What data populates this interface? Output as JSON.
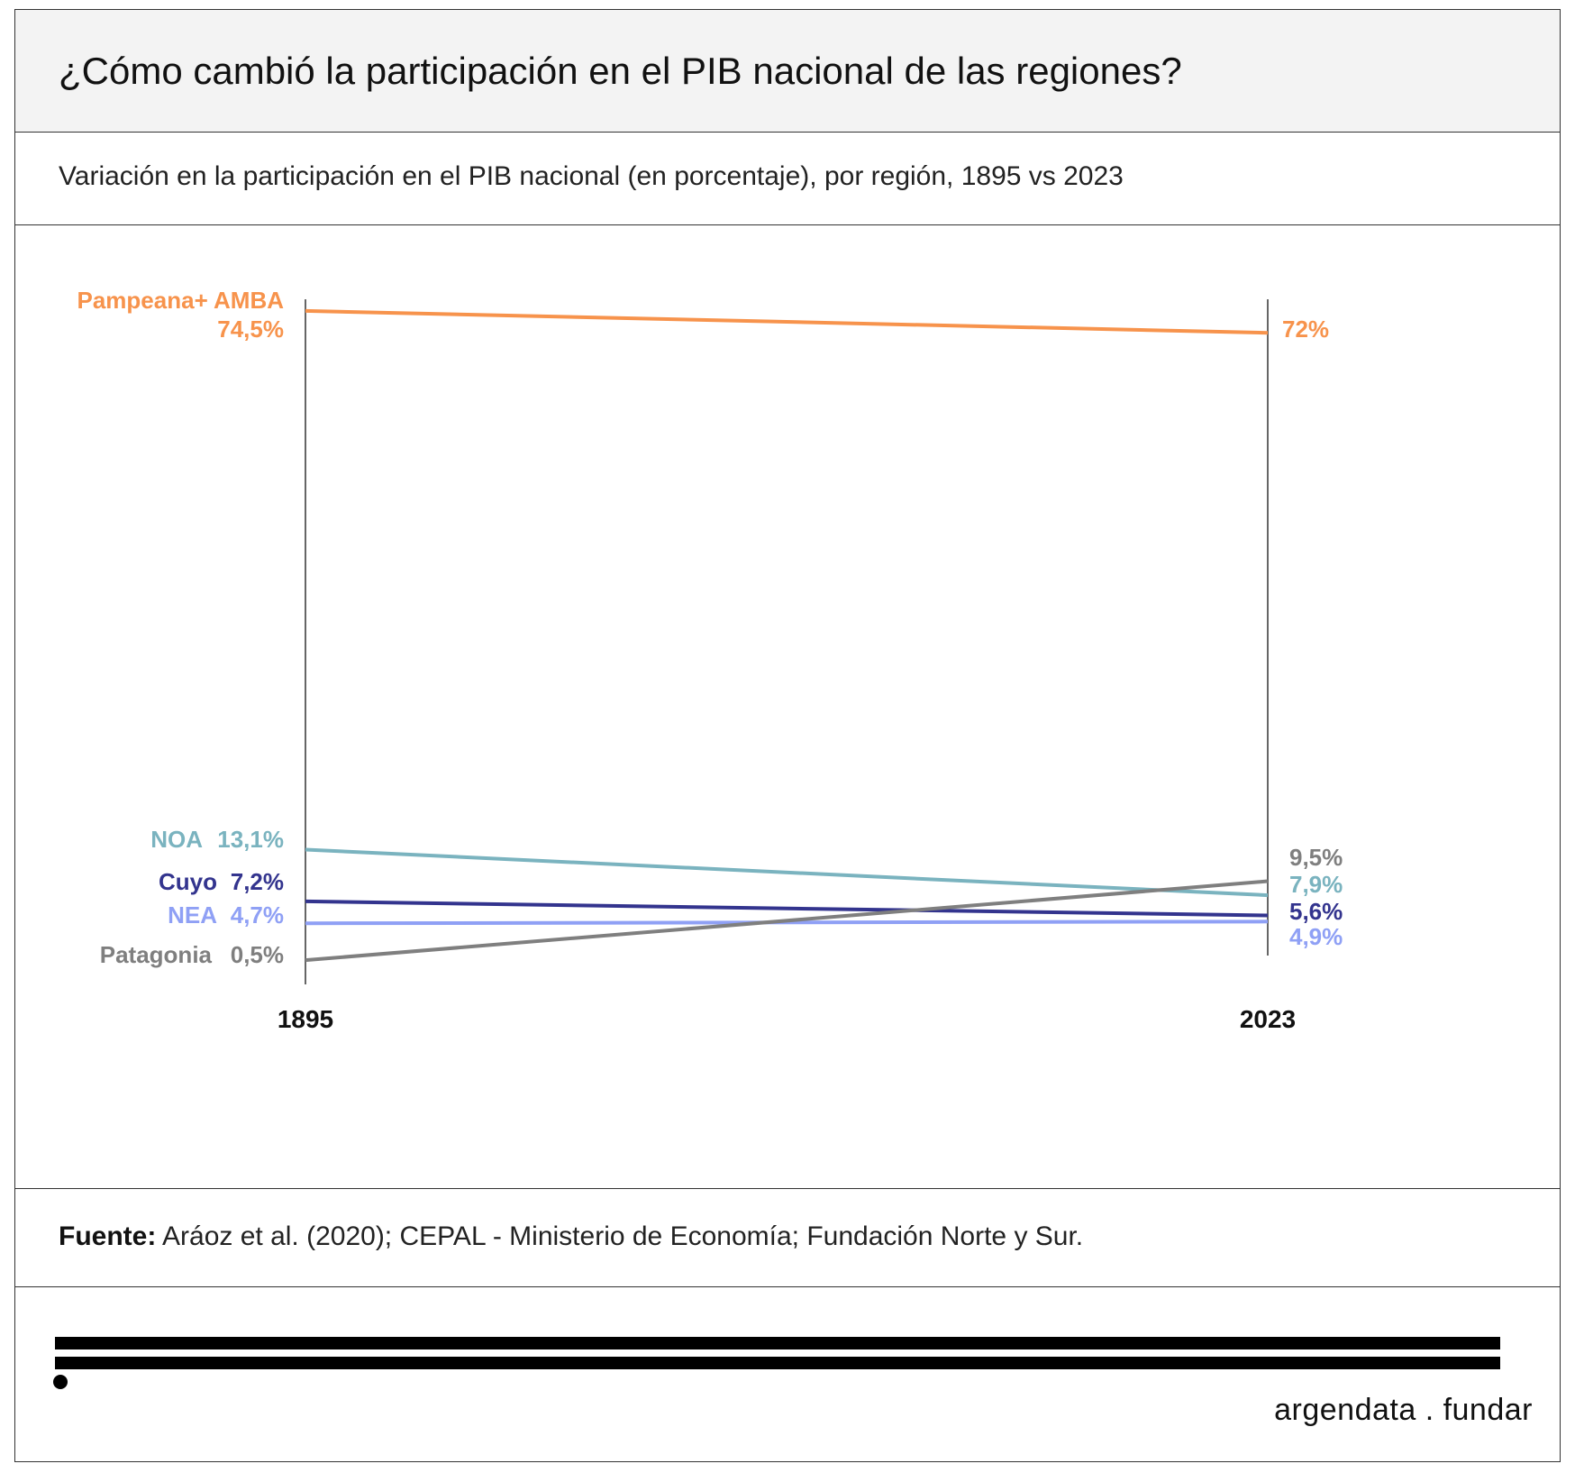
{
  "header": {
    "title": "¿Cómo cambió la participación en el PIB nacional de las regiones?",
    "subtitle": "Variación en la participación en el PIB nacional (en porcentaje), por región, 1895 vs 2023"
  },
  "footer": {
    "source_label": "Fuente:",
    "source_text": " Aráoz et al. (2020); CEPAL - Ministerio de Economía; Fundación Norte y Sur.",
    "brand": "argendata . fundar"
  },
  "chart_data": {
    "type": "line",
    "title": "",
    "xlabel": "",
    "ylabel": "",
    "x": [
      "1895",
      "2023"
    ],
    "ylim": [
      0,
      75
    ],
    "grid": false,
    "legend": "direct labels at line ends",
    "series": [
      {
        "name": "Pampeana+ AMBA",
        "values": [
          74.5,
          72
        ],
        "labels": [
          "74,5%",
          "72%"
        ],
        "color": "#f7934c"
      },
      {
        "name": "NOA",
        "values": [
          13.1,
          7.9
        ],
        "labels": [
          "13,1%",
          "7,9%"
        ],
        "color": "#7ab3bf"
      },
      {
        "name": "Cuyo",
        "values": [
          7.2,
          5.6
        ],
        "labels": [
          "7,2%",
          "5,6%"
        ],
        "color": "#33348e"
      },
      {
        "name": "NEA",
        "values": [
          4.7,
          4.9
        ],
        "labels": [
          "4,7%",
          "4,9%"
        ],
        "color": "#8fa0f5"
      },
      {
        "name": "Patagonia",
        "values": [
          0.5,
          9.5
        ],
        "labels": [
          "0,5%",
          "9,5%"
        ],
        "color": "#7f7f7f"
      }
    ]
  }
}
